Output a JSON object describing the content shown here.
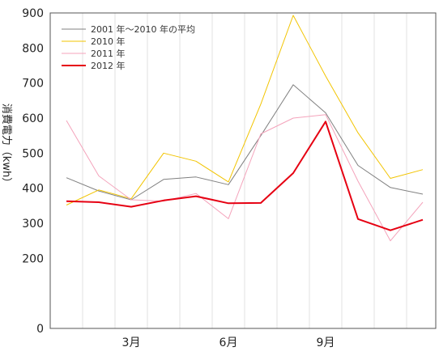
{
  "chart_data": {
    "type": "line",
    "ylabel": "消費電力（kwh）",
    "ylim": [
      0,
      900
    ],
    "y_ticks": [
      0,
      200,
      300,
      400,
      500,
      600,
      700,
      800,
      900
    ],
    "x_months": [
      1,
      2,
      3,
      4,
      5,
      6,
      7,
      8,
      9,
      10,
      11,
      12
    ],
    "x_tick_labels": [
      {
        "month": 3,
        "label": "3月"
      },
      {
        "month": 6,
        "label": "6月"
      },
      {
        "month": 9,
        "label": "9月"
      }
    ],
    "grid": "vertical",
    "legend_position": "top-left",
    "series": [
      {
        "name": "2001 年〜2010 年の平均",
        "color": "#808080",
        "width": 1,
        "values": [
          430,
          392,
          367,
          425,
          432,
          410,
          550,
          695,
          615,
          465,
          402,
          383
        ]
      },
      {
        "name": "2010 年",
        "color": "#f2c400",
        "width": 1,
        "values": [
          352,
          395,
          370,
          500,
          477,
          418,
          640,
          893,
          720,
          558,
          428,
          453
        ]
      },
      {
        "name": "2011 年",
        "color": "#f4a3bb",
        "width": 1,
        "values": [
          593,
          435,
          367,
          363,
          385,
          313,
          555,
          600,
          610,
          420,
          250,
          360
        ]
      },
      {
        "name": "2012 年",
        "color": "#e60012",
        "width": 2,
        "values": [
          363,
          360,
          347,
          365,
          377,
          357,
          358,
          443,
          590,
          312,
          280,
          310
        ]
      }
    ]
  }
}
